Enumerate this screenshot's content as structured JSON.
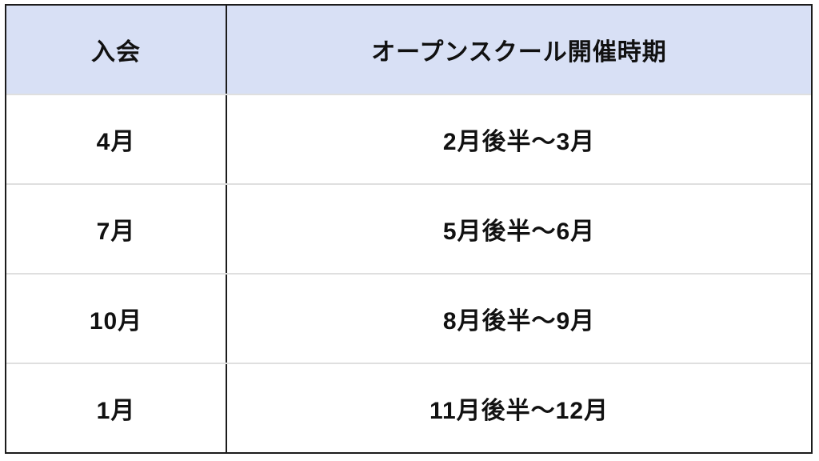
{
  "chart_data": {
    "type": "table",
    "columns": [
      "入会",
      "オープンスクール開催時期"
    ],
    "rows": [
      [
        "4月",
        "2月後半〜3月"
      ],
      [
        "7月",
        "5月後半〜6月"
      ],
      [
        "10月",
        "8月後半〜9月"
      ],
      [
        "1月",
        "11月後半〜12月"
      ]
    ],
    "layout_hints": {
      "header_bg": "#d8e0f5",
      "outer_border_color": "#1c1c1c",
      "column_divider_color": "#1c1c1c",
      "row_divider_color": "#dfdfdf",
      "text_color": "#111111",
      "legend_position": "none",
      "grid": "partial"
    }
  }
}
